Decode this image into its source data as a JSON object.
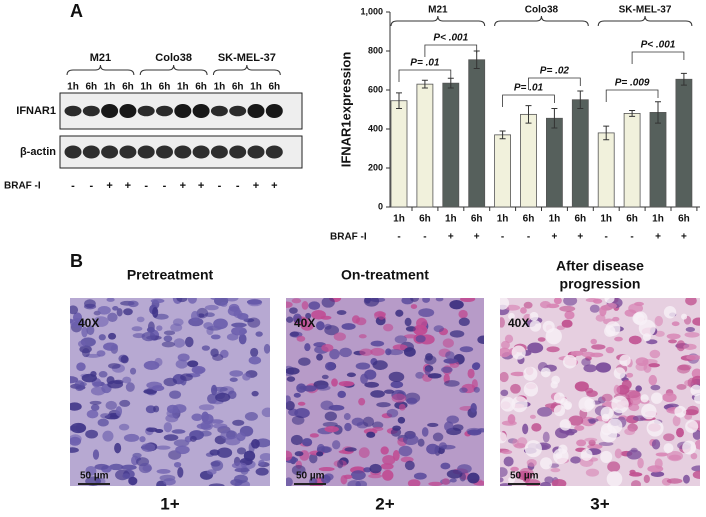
{
  "panel_a": {
    "label": "A",
    "blot": {
      "groups": [
        "M21",
        "Colo38",
        "SK-MEL-37"
      ],
      "lanes": [
        "1h",
        "6h",
        "1h",
        "6h",
        "1h",
        "6h",
        "1h",
        "6h",
        "1h",
        "6h",
        "1h",
        "6h"
      ],
      "rows": [
        "IFNAR1",
        "β-actin"
      ],
      "treatment_label": "BRAF -I",
      "treatment": [
        "-",
        "-",
        "+",
        "+",
        "-",
        "-",
        "+",
        "+",
        "-",
        "-",
        "+",
        "+"
      ]
    }
  },
  "chart_data": {
    "type": "bar",
    "y_label": "IFNAR1expression",
    "groups": [
      "M21",
      "Colo38",
      "SK-MEL-37"
    ],
    "categories": [
      "1h",
      "6h",
      "1h",
      "6h",
      "1h",
      "6h",
      "1h",
      "6h",
      "1h",
      "6h",
      "1h",
      "6h"
    ],
    "values": [
      545,
      630,
      635,
      755,
      370,
      475,
      455,
      550,
      380,
      480,
      485,
      655
    ],
    "errors": [
      40,
      20,
      25,
      45,
      20,
      45,
      50,
      45,
      35,
      15,
      55,
      30
    ],
    "colors": [
      "#f1f1dc",
      "#f1f1dc",
      "#56605c",
      "#56605c",
      "#f1f1dc",
      "#f1f1dc",
      "#56605c",
      "#56605c",
      "#f1f1dc",
      "#f1f1dc",
      "#56605c",
      "#56605c"
    ],
    "treatment_label": "BRAF -I",
    "treatment": [
      "-",
      "-",
      "+",
      "+",
      "-",
      "-",
      "+",
      "+",
      "-",
      "-",
      "+",
      "+"
    ],
    "annotations": [
      "P= .01",
      "P< .001",
      "P= .01",
      "P= .02",
      "P= .009",
      "P< .001"
    ],
    "ylim": [
      0,
      1000
    ],
    "yticks": [
      0,
      200,
      400,
      600,
      800,
      {
        "value": 1000,
        "label": "1,000"
      }
    ]
  },
  "panel_b": {
    "label": "B",
    "images": [
      {
        "title_lines": [
          "Pretreatment"
        ],
        "magnification": "40X",
        "scale_bar": "50 µm",
        "score": "1+"
      },
      {
        "title_lines": [
          "On-treatment"
        ],
        "magnification": "40X",
        "scale_bar": "50 µm",
        "score": "2+"
      },
      {
        "title_lines": [
          "After disease",
          "progression"
        ],
        "magnification": "40X",
        "scale_bar": "50 µm",
        "score": "3+"
      }
    ]
  }
}
